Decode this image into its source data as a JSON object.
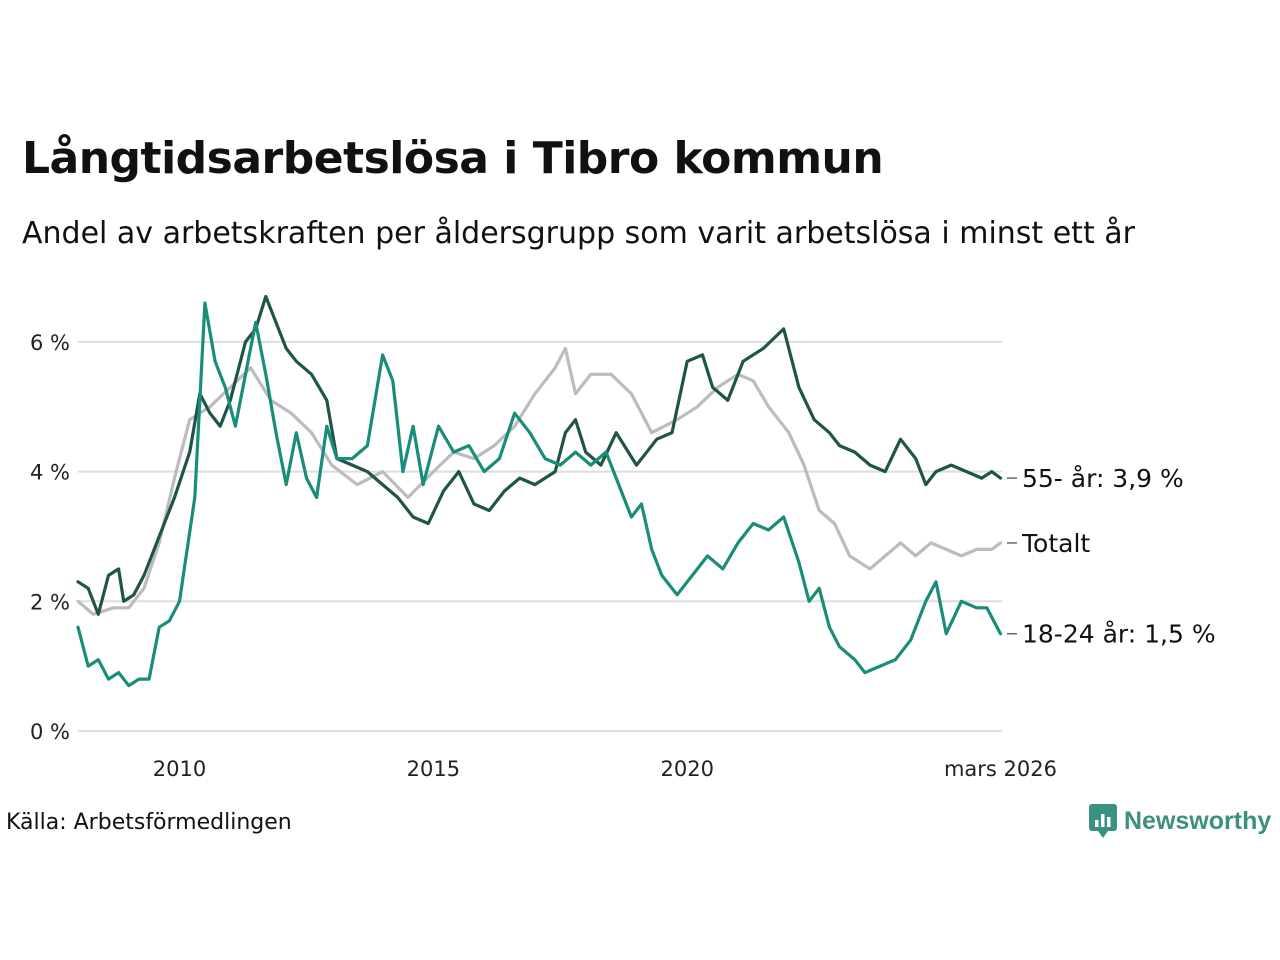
{
  "title": "Långtidsarbetslösa i Tibro kommun",
  "subtitle": "Andel av arbetskraften per åldersgrupp som varit arbetslösa i minst ett år",
  "source": "Källa: Arbetsförmedlingen",
  "brand": {
    "name": "Newsworthy",
    "icon": "newsworthy-logo-icon",
    "color": "#3a9180"
  },
  "chart_data": {
    "type": "line",
    "title": "Långtidsarbetslösa i Tibro kommun",
    "xlabel": "",
    "ylabel": "",
    "xlim": [
      2008.0,
      2026.2
    ],
    "ylim": [
      0,
      6.8
    ],
    "grid": "horizontal",
    "y_ticks": [
      {
        "value": 0,
        "label": "0 %"
      },
      {
        "value": 2,
        "label": "2 %"
      },
      {
        "value": 4,
        "label": "4 %"
      },
      {
        "value": 6,
        "label": "6 %"
      }
    ],
    "x_ticks": [
      {
        "value": 2010,
        "label": "2010"
      },
      {
        "value": 2015,
        "label": "2015"
      },
      {
        "value": 2020,
        "label": "2020"
      },
      {
        "value": 2026.17,
        "label": "mars 2026"
      }
    ],
    "series": [
      {
        "name": "Totalt",
        "end_label": "Totalt",
        "color": "#bbbbc2",
        "points": [
          [
            2008.0,
            2.0
          ],
          [
            2008.3,
            1.8
          ],
          [
            2008.7,
            1.9
          ],
          [
            2009.0,
            1.9
          ],
          [
            2009.3,
            2.2
          ],
          [
            2009.6,
            2.9
          ],
          [
            2009.9,
            3.9
          ],
          [
            2010.2,
            4.8
          ],
          [
            2010.6,
            5.0
          ],
          [
            2011.0,
            5.3
          ],
          [
            2011.4,
            5.6
          ],
          [
            2011.8,
            5.1
          ],
          [
            2012.2,
            4.9
          ],
          [
            2012.6,
            4.6
          ],
          [
            2013.0,
            4.1
          ],
          [
            2013.5,
            3.8
          ],
          [
            2014.0,
            4.0
          ],
          [
            2014.5,
            3.6
          ],
          [
            2015.0,
            4.0
          ],
          [
            2015.4,
            4.3
          ],
          [
            2015.8,
            4.2
          ],
          [
            2016.2,
            4.4
          ],
          [
            2016.6,
            4.7
          ],
          [
            2017.0,
            5.2
          ],
          [
            2017.4,
            5.6
          ],
          [
            2017.6,
            5.9
          ],
          [
            2017.8,
            5.2
          ],
          [
            2018.1,
            5.5
          ],
          [
            2018.5,
            5.5
          ],
          [
            2018.9,
            5.2
          ],
          [
            2019.3,
            4.6
          ],
          [
            2019.8,
            4.8
          ],
          [
            2020.2,
            5.0
          ],
          [
            2020.6,
            5.3
          ],
          [
            2021.0,
            5.5
          ],
          [
            2021.3,
            5.4
          ],
          [
            2021.6,
            5.0
          ],
          [
            2022.0,
            4.6
          ],
          [
            2022.3,
            4.1
          ],
          [
            2022.6,
            3.4
          ],
          [
            2022.9,
            3.2
          ],
          [
            2023.2,
            2.7
          ],
          [
            2023.4,
            2.6
          ],
          [
            2023.6,
            2.5
          ],
          [
            2023.9,
            2.7
          ],
          [
            2024.2,
            2.9
          ],
          [
            2024.5,
            2.7
          ],
          [
            2024.8,
            2.9
          ],
          [
            2025.1,
            2.8
          ],
          [
            2025.4,
            2.7
          ],
          [
            2025.7,
            2.8
          ],
          [
            2026.0,
            2.8
          ],
          [
            2026.17,
            2.9
          ]
        ]
      },
      {
        "name": "55- år",
        "end_label": "55- år: 3,9 %",
        "color": "#1f5448",
        "points": [
          [
            2008.0,
            2.3
          ],
          [
            2008.2,
            2.2
          ],
          [
            2008.4,
            1.8
          ],
          [
            2008.6,
            2.4
          ],
          [
            2008.8,
            2.5
          ],
          [
            2008.9,
            2.0
          ],
          [
            2009.1,
            2.1
          ],
          [
            2009.3,
            2.4
          ],
          [
            2009.6,
            3.0
          ],
          [
            2009.9,
            3.6
          ],
          [
            2010.2,
            4.3
          ],
          [
            2010.4,
            5.2
          ],
          [
            2010.6,
            4.9
          ],
          [
            2010.8,
            4.7
          ],
          [
            2011.0,
            5.1
          ],
          [
            2011.3,
            6.0
          ],
          [
            2011.5,
            6.2
          ],
          [
            2011.7,
            6.7
          ],
          [
            2011.9,
            6.3
          ],
          [
            2012.1,
            5.9
          ],
          [
            2012.3,
            5.7
          ],
          [
            2012.6,
            5.5
          ],
          [
            2012.9,
            5.1
          ],
          [
            2013.1,
            4.2
          ],
          [
            2013.4,
            4.1
          ],
          [
            2013.7,
            4.0
          ],
          [
            2014.0,
            3.8
          ],
          [
            2014.3,
            3.6
          ],
          [
            2014.6,
            3.3
          ],
          [
            2014.9,
            3.2
          ],
          [
            2015.2,
            3.7
          ],
          [
            2015.5,
            4.0
          ],
          [
            2015.8,
            3.5
          ],
          [
            2016.1,
            3.4
          ],
          [
            2016.4,
            3.7
          ],
          [
            2016.7,
            3.9
          ],
          [
            2017.0,
            3.8
          ],
          [
            2017.4,
            4.0
          ],
          [
            2017.6,
            4.6
          ],
          [
            2017.8,
            4.8
          ],
          [
            2018.0,
            4.3
          ],
          [
            2018.3,
            4.1
          ],
          [
            2018.6,
            4.6
          ],
          [
            2019.0,
            4.1
          ],
          [
            2019.4,
            4.5
          ],
          [
            2019.7,
            4.6
          ],
          [
            2020.0,
            5.7
          ],
          [
            2020.3,
            5.8
          ],
          [
            2020.5,
            5.3
          ],
          [
            2020.8,
            5.1
          ],
          [
            2021.1,
            5.7
          ],
          [
            2021.5,
            5.9
          ],
          [
            2021.9,
            6.2
          ],
          [
            2022.2,
            5.3
          ],
          [
            2022.5,
            4.8
          ],
          [
            2022.8,
            4.6
          ],
          [
            2023.0,
            4.4
          ],
          [
            2023.3,
            4.3
          ],
          [
            2023.6,
            4.1
          ],
          [
            2023.9,
            4.0
          ],
          [
            2024.2,
            4.5
          ],
          [
            2024.5,
            4.2
          ],
          [
            2024.7,
            3.8
          ],
          [
            2024.9,
            4.0
          ],
          [
            2025.2,
            4.1
          ],
          [
            2025.5,
            4.0
          ],
          [
            2025.8,
            3.9
          ],
          [
            2026.0,
            4.0
          ],
          [
            2026.17,
            3.9
          ]
        ]
      },
      {
        "name": "18-24 år",
        "end_label": "18-24 år: 1,5 %",
        "color": "#1a8c7a",
        "points": [
          [
            2008.0,
            1.6
          ],
          [
            2008.2,
            1.0
          ],
          [
            2008.4,
            1.1
          ],
          [
            2008.6,
            0.8
          ],
          [
            2008.8,
            0.9
          ],
          [
            2009.0,
            0.7
          ],
          [
            2009.2,
            0.8
          ],
          [
            2009.4,
            0.8
          ],
          [
            2009.6,
            1.6
          ],
          [
            2009.8,
            1.7
          ],
          [
            2010.0,
            2.0
          ],
          [
            2010.3,
            3.6
          ],
          [
            2010.5,
            6.6
          ],
          [
            2010.7,
            5.7
          ],
          [
            2010.9,
            5.3
          ],
          [
            2011.1,
            4.7
          ],
          [
            2011.3,
            5.5
          ],
          [
            2011.5,
            6.3
          ],
          [
            2011.7,
            5.5
          ],
          [
            2011.9,
            4.6
          ],
          [
            2012.1,
            3.8
          ],
          [
            2012.3,
            4.6
          ],
          [
            2012.5,
            3.9
          ],
          [
            2012.7,
            3.6
          ],
          [
            2012.9,
            4.7
          ],
          [
            2013.1,
            4.2
          ],
          [
            2013.4,
            4.2
          ],
          [
            2013.7,
            4.4
          ],
          [
            2014.0,
            5.8
          ],
          [
            2014.2,
            5.4
          ],
          [
            2014.4,
            4.0
          ],
          [
            2014.6,
            4.7
          ],
          [
            2014.8,
            3.8
          ],
          [
            2015.1,
            4.7
          ],
          [
            2015.4,
            4.3
          ],
          [
            2015.7,
            4.4
          ],
          [
            2016.0,
            4.0
          ],
          [
            2016.3,
            4.2
          ],
          [
            2016.6,
            4.9
          ],
          [
            2016.9,
            4.6
          ],
          [
            2017.2,
            4.2
          ],
          [
            2017.5,
            4.1
          ],
          [
            2017.8,
            4.3
          ],
          [
            2018.1,
            4.1
          ],
          [
            2018.4,
            4.3
          ],
          [
            2018.7,
            3.7
          ],
          [
            2018.9,
            3.3
          ],
          [
            2019.1,
            3.5
          ],
          [
            2019.3,
            2.8
          ],
          [
            2019.5,
            2.4
          ],
          [
            2019.8,
            2.1
          ],
          [
            2020.1,
            2.4
          ],
          [
            2020.4,
            2.7
          ],
          [
            2020.7,
            2.5
          ],
          [
            2021.0,
            2.9
          ],
          [
            2021.3,
            3.2
          ],
          [
            2021.6,
            3.1
          ],
          [
            2021.9,
            3.3
          ],
          [
            2022.2,
            2.6
          ],
          [
            2022.4,
            2.0
          ],
          [
            2022.6,
            2.2
          ],
          [
            2022.8,
            1.6
          ],
          [
            2023.0,
            1.3
          ],
          [
            2023.3,
            1.1
          ],
          [
            2023.5,
            0.9
          ],
          [
            2023.8,
            1.0
          ],
          [
            2024.1,
            1.1
          ],
          [
            2024.4,
            1.4
          ],
          [
            2024.7,
            2.0
          ],
          [
            2024.9,
            2.3
          ],
          [
            2025.1,
            1.5
          ],
          [
            2025.4,
            2.0
          ],
          [
            2025.7,
            1.9
          ],
          [
            2025.9,
            1.9
          ],
          [
            2026.17,
            1.5
          ]
        ]
      }
    ]
  }
}
